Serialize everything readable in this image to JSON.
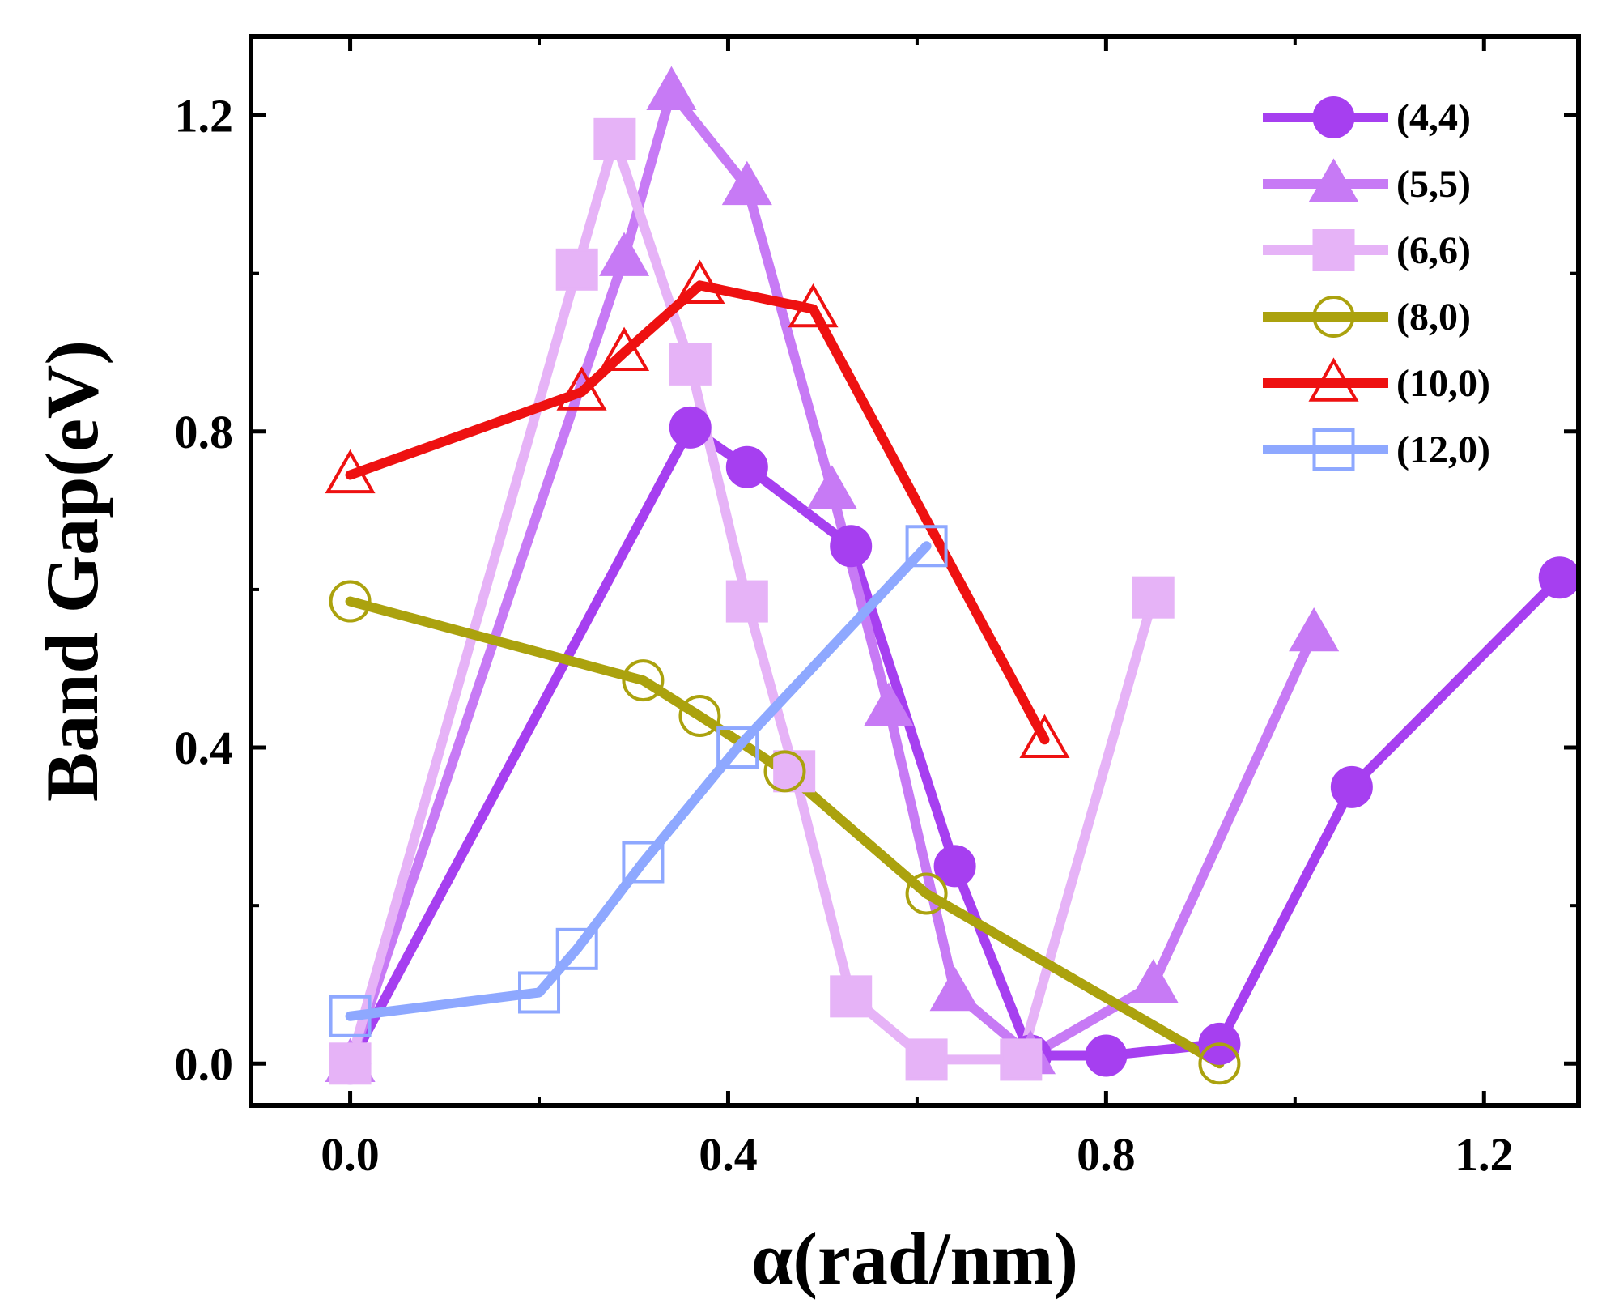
{
  "chart_data": {
    "type": "line",
    "xlabel": "α(rad/nm)",
    "ylabel": "Band Gap(eV)",
    "xlim": [
      -0.105,
      1.3
    ],
    "ylim": [
      -0.053,
      1.3
    ],
    "xticks": [
      "0.0",
      "0.4",
      "0.8",
      "1.2"
    ],
    "yticks": [
      "0.0",
      "0.4",
      "0.8",
      "1.2"
    ],
    "legend_position": "top-right",
    "series": [
      {
        "name": "(4,4)",
        "color": "#a63ff0",
        "marker": "circle",
        "filled": true,
        "points": [
          [
            0,
            0
          ],
          [
            0.36,
            0.805
          ],
          [
            0.42,
            0.755
          ],
          [
            0.53,
            0.655
          ],
          [
            0.64,
            0.25
          ],
          [
            0.72,
            0.01
          ],
          [
            0.8,
            0.01
          ],
          [
            0.92,
            0.025
          ],
          [
            1.06,
            0.35
          ],
          [
            1.28,
            0.615
          ]
        ]
      },
      {
        "name": "(5,5)",
        "color": "#c77af5",
        "marker": "triangle",
        "filled": true,
        "points": [
          [
            0,
            0
          ],
          [
            0.29,
            1.02
          ],
          [
            0.34,
            1.23
          ],
          [
            0.42,
            1.11
          ],
          [
            0.51,
            0.725
          ],
          [
            0.57,
            0.45
          ],
          [
            0.64,
            0.09
          ],
          [
            0.72,
            0.01
          ],
          [
            0.85,
            0.1
          ],
          [
            1.02,
            0.545
          ]
        ]
      },
      {
        "name": "(6,6)",
        "color": "#e6b3f7",
        "marker": "square",
        "filled": true,
        "points": [
          [
            0,
            0
          ],
          [
            0.24,
            1.005
          ],
          [
            0.28,
            1.17
          ],
          [
            0.36,
            0.885
          ],
          [
            0.42,
            0.585
          ],
          [
            0.47,
            0.37
          ],
          [
            0.53,
            0.085
          ],
          [
            0.61,
            0.005
          ],
          [
            0.71,
            0.005
          ],
          [
            0.85,
            0.59
          ]
        ]
      },
      {
        "name": "(8,0)",
        "color": "#aba20e",
        "marker": "circle",
        "filled": false,
        "points": [
          [
            0,
            0.585
          ],
          [
            0.31,
            0.485
          ],
          [
            0.37,
            0.44
          ],
          [
            0.46,
            0.37
          ],
          [
            0.61,
            0.215
          ],
          [
            0.92,
            0
          ]
        ]
      },
      {
        "name": "(10,0)",
        "color": "#ee1111",
        "marker": "triangle",
        "filled": false,
        "points": [
          [
            0,
            0.745
          ],
          [
            0.245,
            0.85
          ],
          [
            0.29,
            0.9
          ],
          [
            0.37,
            0.985
          ],
          [
            0.49,
            0.955
          ],
          [
            0.735,
            0.41
          ]
        ]
      },
      {
        "name": "(12,0)",
        "color": "#8ea8ff",
        "marker": "square",
        "filled": false,
        "points": [
          [
            0,
            0.06
          ],
          [
            0.2,
            0.09
          ],
          [
            0.24,
            0.145
          ],
          [
            0.31,
            0.255
          ],
          [
            0.41,
            0.4
          ],
          [
            0.61,
            0.655
          ]
        ]
      }
    ]
  }
}
